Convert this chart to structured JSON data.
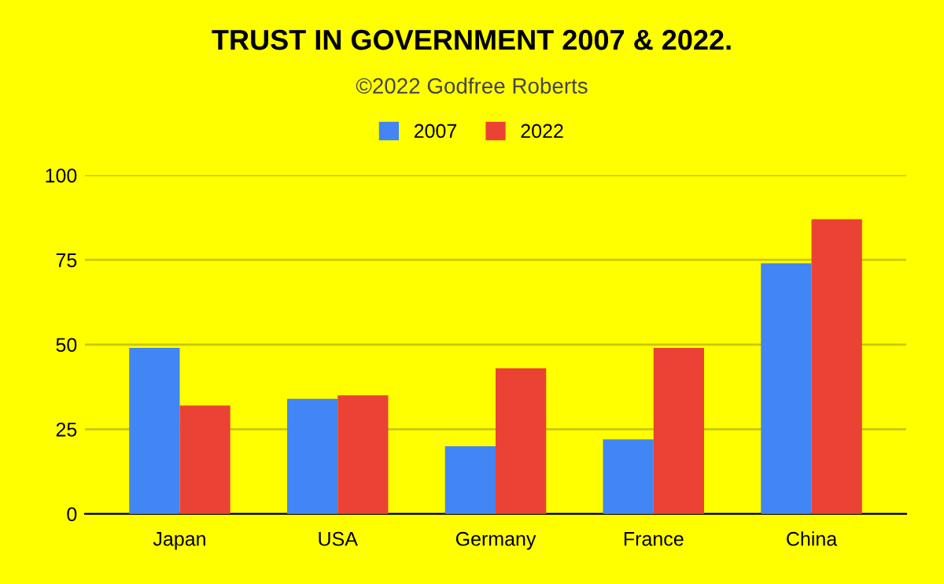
{
  "chart_data": {
    "type": "bar",
    "title": "TRUST IN GOVERNMENT 2007 & 2022.",
    "subtitle": "©2022 Godfree Roberts",
    "categories": [
      "Japan",
      "USA",
      "Germany",
      "France",
      "China"
    ],
    "series": [
      {
        "name": "2007",
        "color": "#4285f4",
        "values": [
          49,
          34,
          20,
          22,
          74
        ]
      },
      {
        "name": "2022",
        "color": "#ea4335",
        "values": [
          32,
          35,
          43,
          49,
          87
        ]
      }
    ],
    "ylim": [
      0,
      100
    ],
    "yticks": [
      0,
      25,
      50,
      75,
      100
    ],
    "grid": "y",
    "legend": "top"
  }
}
